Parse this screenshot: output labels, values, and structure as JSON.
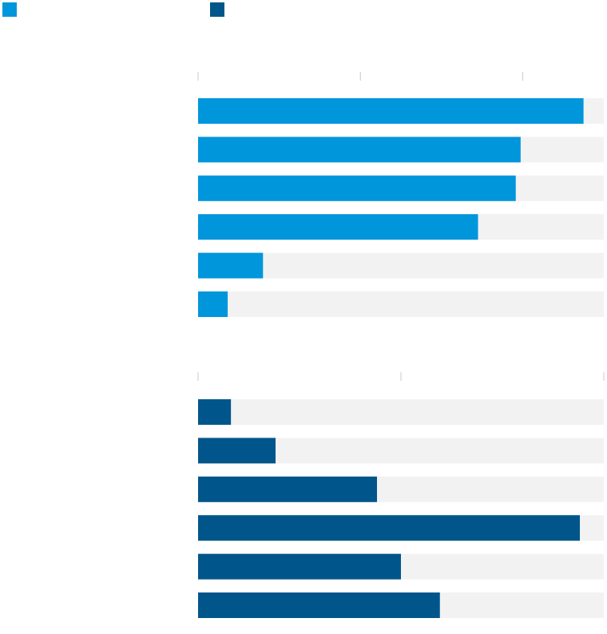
{
  "chart_data": [
    {
      "type": "bar",
      "orientation": "horizontal",
      "categories": [
        null,
        null,
        null,
        null,
        null,
        null
      ],
      "series": [
        {
          "color": "#0096db",
          "values": [
            95,
            79.5,
            78.3,
            69,
            16,
            7.3
          ]
        }
      ],
      "xlim": [
        0,
        100
      ],
      "xticks": [
        0,
        40,
        80
      ]
    },
    {
      "type": "bar",
      "orientation": "horizontal",
      "categories": [
        null,
        null,
        null,
        null,
        null,
        null
      ],
      "series": [
        {
          "color": "#00568a",
          "values": [
            8.1,
            19.1,
            44.1,
            94.1,
            50,
            59.6
          ]
        }
      ],
      "xlim": [
        0,
        100
      ],
      "xticks": [
        0,
        50,
        100
      ]
    }
  ]
}
